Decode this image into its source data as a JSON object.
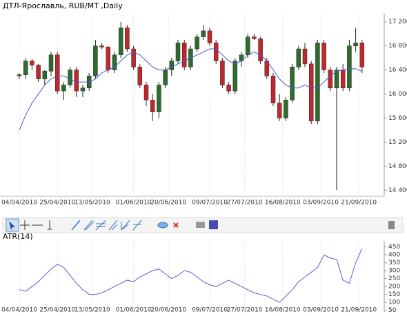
{
  "chart_data": [
    {
      "type": "candlestick",
      "title": "ДТЛ-Ярославль,  RUB/MT ,Daily",
      "open": [
        16300,
        16320,
        16550,
        16480,
        16250,
        16380,
        16650,
        16050,
        16150,
        16400,
        16050,
        16100,
        16300,
        16800,
        16780,
        16400,
        16650,
        17100,
        16750,
        16450,
        16150,
        15900,
        15700,
        16150,
        16400,
        16550,
        16850,
        16450,
        16750,
        16950,
        17050,
        16850,
        16550,
        16150,
        16050,
        16550,
        16650,
        16950,
        16920,
        16550,
        16300,
        15850,
        15600,
        15900,
        16450,
        16750,
        16500,
        15550,
        16850,
        16400,
        16100,
        16400,
        16100,
        16800,
        16850
      ],
      "high": [
        16350,
        16600,
        16580,
        16500,
        16400,
        16700,
        16700,
        16200,
        16450,
        16450,
        16150,
        16350,
        16900,
        16850,
        16800,
        16700,
        17200,
        17150,
        16800,
        16500,
        16200,
        16000,
        16200,
        16450,
        16600,
        16900,
        16900,
        16800,
        17000,
        17150,
        17100,
        16900,
        16600,
        16200,
        16600,
        16700,
        17000,
        17000,
        16950,
        16600,
        16350,
        16000,
        15950,
        16500,
        16800,
        16850,
        16550,
        16900,
        16900,
        16450,
        16450,
        16500,
        16900,
        17100,
        16900
      ],
      "low": [
        16250,
        16250,
        16400,
        16200,
        16150,
        16300,
        16000,
        15900,
        16100,
        15950,
        15950,
        16050,
        16250,
        16750,
        16350,
        16350,
        16600,
        16700,
        16400,
        16100,
        15800,
        15550,
        15600,
        16100,
        16300,
        16500,
        16400,
        16400,
        16700,
        16900,
        16800,
        16500,
        16100,
        16000,
        16000,
        16450,
        16600,
        16900,
        16500,
        16250,
        15800,
        15550,
        15550,
        15850,
        16400,
        16450,
        15500,
        15500,
        16350,
        16050,
        14400,
        16050,
        16050,
        16700,
        16350
      ],
      "close": [
        16320,
        16550,
        16480,
        16250,
        16380,
        16650,
        16050,
        16150,
        16400,
        16050,
        16100,
        16300,
        16800,
        16780,
        16400,
        16650,
        17100,
        16750,
        16450,
        16150,
        15900,
        15700,
        16150,
        16400,
        16550,
        16850,
        16450,
        16750,
        16950,
        17050,
        16850,
        16550,
        16150,
        16050,
        16550,
        16650,
        16950,
        16920,
        16550,
        16300,
        15850,
        15600,
        15900,
        16450,
        16750,
        16500,
        15550,
        16850,
        16400,
        16100,
        16400,
        16100,
        16800,
        16850,
        16450
      ],
      "up_color": "#2e6b2e",
      "down_color": "#c0282d",
      "ma": {
        "color": "#4a55d8",
        "values": [
          15400,
          15650,
          15850,
          16000,
          16150,
          16250,
          16300,
          16300,
          16250,
          16200,
          16200,
          16200,
          16250,
          16350,
          16400,
          16450,
          16550,
          16650,
          16700,
          16650,
          16550,
          16450,
          16400,
          16400,
          16450,
          16500,
          16550,
          16600,
          16650,
          16700,
          16750,
          16750,
          16650,
          16550,
          16500,
          16550,
          16650,
          16700,
          16650,
          16550,
          16400,
          16250,
          16150,
          16100,
          16100,
          16150,
          16100,
          16100,
          16200,
          16300,
          16380,
          16400,
          16420,
          16420,
          16380
        ]
      },
      "xticks": [
        {
          "value": 0,
          "label": "04/04/2010"
        },
        {
          "value": 6,
          "label": "25/04/2010"
        },
        {
          "value": 11.5,
          "label": "13/05/2010"
        },
        {
          "value": 18,
          "label": "01/06/2010"
        },
        {
          "value": 23.5,
          "label": "20/06/2010"
        },
        {
          "value": 30,
          "label": "09/07/2010"
        },
        {
          "value": 35.5,
          "label": "27/07/2010"
        },
        {
          "value": 41.5,
          "label": "16/08/2010"
        },
        {
          "value": 47.5,
          "label": "03/09/2010"
        },
        {
          "value": 53.5,
          "label": "21/09/2010"
        }
      ],
      "ylim": [
        14300,
        17300
      ],
      "yticks": [
        {
          "value": 14400,
          "label": "14 400"
        },
        {
          "value": 14800,
          "label": "14 800"
        },
        {
          "value": 15200,
          "label": "15 200"
        },
        {
          "value": 15600,
          "label": "15 600"
        },
        {
          "value": 16000,
          "label": "16 000"
        },
        {
          "value": 16400,
          "label": "16 400"
        },
        {
          "value": 16800,
          "label": "16 800"
        },
        {
          "value": 17200,
          "label": "17 200"
        }
      ],
      "grid": true
    },
    {
      "type": "line",
      "title": "ATR(14)",
      "color": "#5a5ad6",
      "values": [
        180,
        170,
        200,
        230,
        270,
        310,
        340,
        320,
        270,
        220,
        180,
        150,
        150,
        160,
        180,
        200,
        220,
        240,
        230,
        260,
        280,
        300,
        310,
        280,
        250,
        270,
        300,
        290,
        260,
        230,
        210,
        200,
        220,
        240,
        220,
        200,
        180,
        160,
        150,
        140,
        120,
        100,
        140,
        180,
        230,
        260,
        290,
        320,
        400,
        380,
        370,
        240,
        220,
        350,
        440
      ],
      "ylim": [
        40,
        470
      ],
      "yticks": [
        50,
        100,
        150,
        200,
        250,
        300,
        350,
        400,
        450
      ],
      "grid": true
    }
  ]
}
